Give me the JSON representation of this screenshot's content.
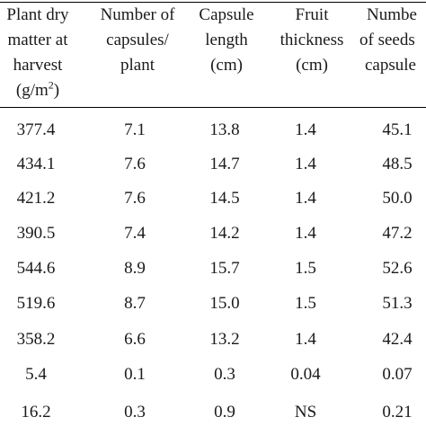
{
  "headers": [
    {
      "lines": [
        "Plant dry",
        "matter at",
        "harvest",
        "(g/m"
      ],
      "sup": "2",
      "suffix": ")"
    },
    {
      "lines": [
        "Number of",
        "capsules/",
        "plant"
      ]
    },
    {
      "lines": [
        "Capsule",
        "length",
        "(cm)"
      ]
    },
    {
      "lines": [
        "Fruit",
        "thickness",
        "(cm)"
      ]
    },
    {
      "lines": [
        "Numbe",
        "of seeds",
        "capsule"
      ]
    }
  ],
  "rows": [
    [
      "377.4",
      "7.1",
      "13.8",
      "1.4",
      "45.1"
    ],
    [
      "434.1",
      "7.6",
      "14.7",
      "1.4",
      "48.5"
    ],
    [
      "421.2",
      "7.6",
      "14.5",
      "1.4",
      "50.0"
    ],
    [
      "390.5",
      "7.4",
      "14.2",
      "1.4",
      "47.2"
    ],
    [
      "544.6",
      "8.9",
      "15.7",
      "1.5",
      "52.6"
    ],
    [
      "519.6",
      "8.7",
      "15.0",
      "1.5",
      "51.3"
    ],
    [
      "358.2",
      "6.6",
      "13.2",
      "1.4",
      "42.4"
    ],
    [
      "5.4",
      "0.1",
      "0.3",
      "0.04",
      "0.07"
    ],
    [
      "16.2",
      "0.3",
      "0.9",
      "NS",
      "0.21"
    ]
  ]
}
